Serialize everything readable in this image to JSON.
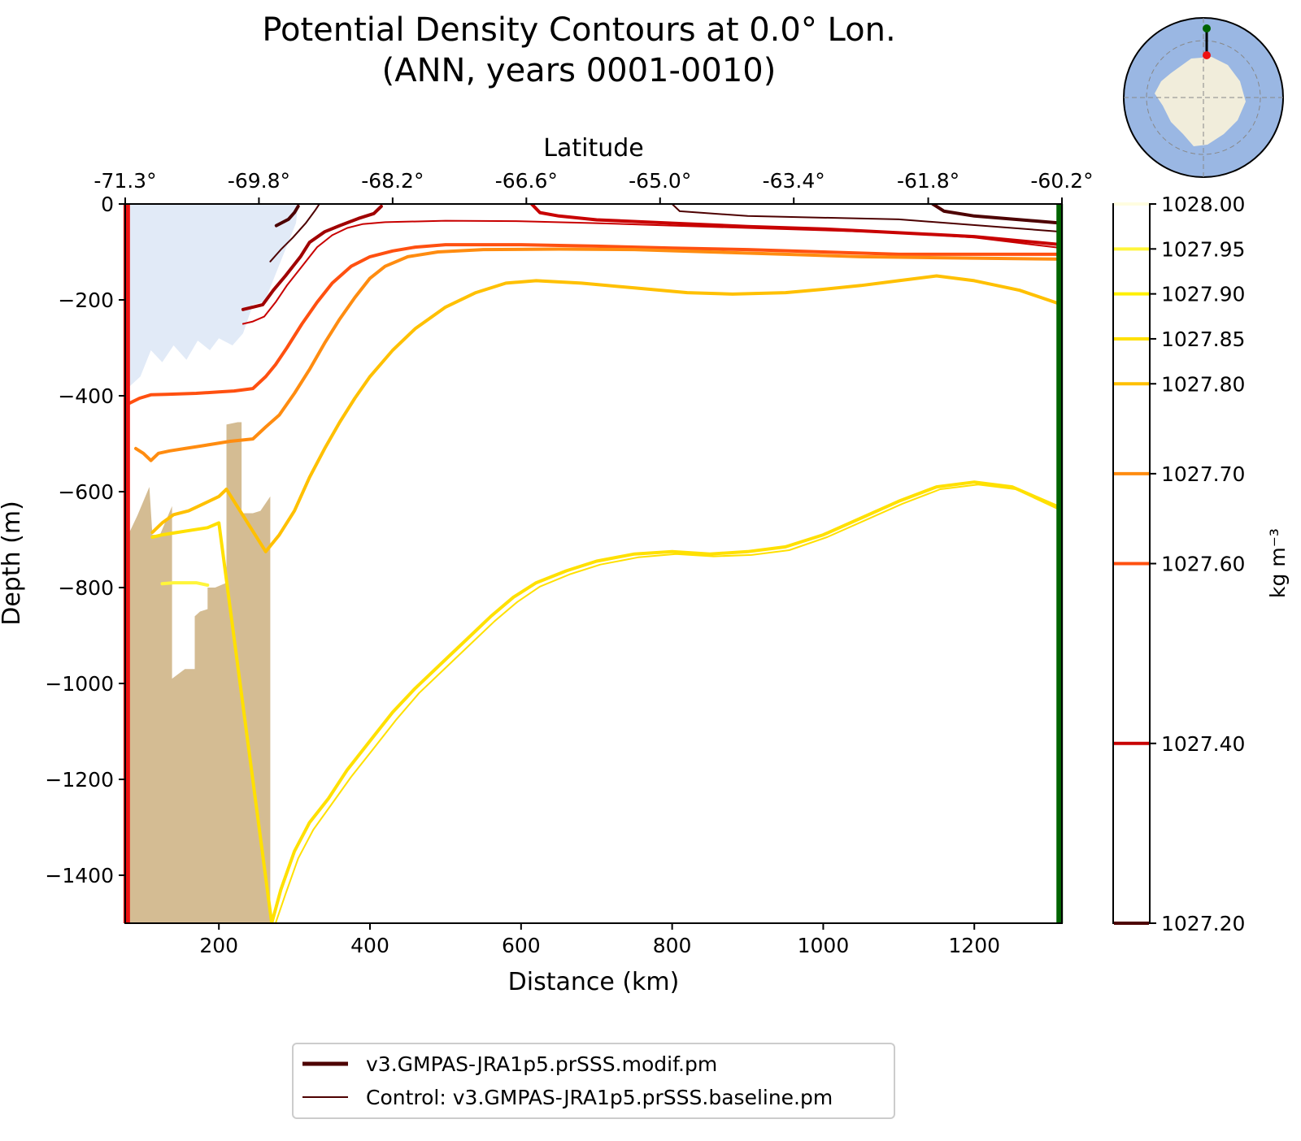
{
  "chart_data": {
    "type": "line",
    "title_line1": "Potential Density Contours at 0.0° Lon.",
    "title_line2": "(ANN, years 0001-0010)",
    "xlabel": "Distance (km)",
    "ylabel": "Depth (m)",
    "top_xlabel": "Latitude",
    "colorbar_label": "kg m⁻³",
    "xlim": [
      76,
      1316
    ],
    "ylim": [
      -1500,
      0
    ],
    "x_ticks": [
      200,
      400,
      600,
      800,
      1000,
      1200
    ],
    "y_ticks": [
      0,
      -200,
      -400,
      -600,
      -800,
      -1000,
      -1200,
      -1400
    ],
    "y_tick_labels": [
      "0",
      "−200",
      "−400",
      "−600",
      "−800",
      "−1000",
      "−1200",
      "−1400"
    ],
    "top_ticks": [
      {
        "x": 76,
        "label": "-71.3°"
      },
      {
        "x": 253,
        "label": "-69.8°"
      },
      {
        "x": 430,
        "label": "-68.2°"
      },
      {
        "x": 607,
        "label": "-66.6°"
      },
      {
        "x": 784,
        "label": "-65.0°"
      },
      {
        "x": 961,
        "label": "-63.4°"
      },
      {
        "x": 1139,
        "label": "-61.8°"
      },
      {
        "x": 1316,
        "label": "-60.2°"
      }
    ],
    "colorbar": {
      "range": [
        1027.2,
        1028.0
      ],
      "levels": [
        {
          "value": 1028.0,
          "label": "1028.00",
          "color": "#fffde0"
        },
        {
          "value": 1027.95,
          "label": "1027.95",
          "color": "#fff53a"
        },
        {
          "value": 1027.9,
          "label": "1027.90",
          "color": "#fff000"
        },
        {
          "value": 1027.85,
          "label": "1027.85",
          "color": "#ffe000"
        },
        {
          "value": 1027.8,
          "label": "1027.80",
          "color": "#ffc000"
        },
        {
          "value": 1027.7,
          "label": "1027.70",
          "color": "#ff8c10"
        },
        {
          "value": 1027.6,
          "label": "1027.60",
          "color": "#ff5010"
        },
        {
          "value": 1027.4,
          "label": "1027.40",
          "color": "#c80000"
        },
        {
          "value": 1027.2,
          "label": "1027.20",
          "color": "#4d0000"
        }
      ]
    },
    "legend": [
      {
        "label": "v3.GMPAS-JRA1p5.prSSS.modif.pm",
        "color": "#4d0000",
        "style": "thick"
      },
      {
        "label": "Control: v3.GMPAS-JRA1p5.prSSS.baseline.pm",
        "color": "#4d0000",
        "style": "thin"
      }
    ],
    "boundaries": [
      {
        "name": "start",
        "x": 78,
        "color": "#ee1111"
      },
      {
        "name": "end",
        "x": 1313,
        "color": "#006400"
      }
    ],
    "ice_shelf": [
      [
        80,
        0
      ],
      [
        305,
        0
      ],
      [
        302,
        -40
      ],
      [
        283,
        -115
      ],
      [
        264,
        -190
      ],
      [
        258,
        -205
      ],
      [
        245,
        -210
      ],
      [
        232,
        -270
      ],
      [
        218,
        -295
      ],
      [
        200,
        -280
      ],
      [
        188,
        -305
      ],
      [
        172,
        -285
      ],
      [
        157,
        -325
      ],
      [
        140,
        -295
      ],
      [
        125,
        -330
      ],
      [
        110,
        -305
      ],
      [
        96,
        -360
      ],
      [
        82,
        -380
      ],
      [
        80,
        -380
      ]
    ],
    "bathymetry": [
      [
        80,
        -1500
      ],
      [
        80,
        -690
      ],
      [
        92,
        -650
      ],
      [
        108,
        -590
      ],
      [
        112,
        -690
      ],
      [
        122,
        -690
      ],
      [
        138,
        -630
      ],
      [
        138,
        -990
      ],
      [
        155,
        -970
      ],
      [
        168,
        -970
      ],
      [
        168,
        -860
      ],
      [
        175,
        -850
      ],
      [
        185,
        -845
      ],
      [
        185,
        -800
      ],
      [
        195,
        -800
      ],
      [
        210,
        -790
      ],
      [
        210,
        -460
      ],
      [
        225,
        -455
      ],
      [
        230,
        -455
      ],
      [
        230,
        -645
      ],
      [
        245,
        -645
      ],
      [
        255,
        -640
      ],
      [
        268,
        -610
      ],
      [
        268,
        -1500
      ]
    ],
    "contours": [
      {
        "level": 1027.2,
        "color": "#4d0000",
        "width": 4,
        "points": [
          [
            276,
            -45
          ],
          [
            292,
            -32
          ],
          [
            300,
            -18
          ],
          [
            305,
            -5
          ]
        ]
      },
      {
        "level": 1027.2,
        "color": "#4d0000",
        "width": 2,
        "points": [
          [
            268,
            -120
          ],
          [
            282,
            -95
          ],
          [
            298,
            -70
          ],
          [
            315,
            -40
          ],
          [
            328,
            -12
          ],
          [
            333,
            0
          ]
        ]
      },
      {
        "level": 1027.2,
        "color": "#4d0000",
        "width": 2,
        "points": [
          [
            800,
            0
          ],
          [
            810,
            -15
          ],
          [
            900,
            -25
          ],
          [
            1100,
            -32
          ],
          [
            1316,
            -58
          ]
        ]
      },
      {
        "level": 1027.2,
        "color": "#4d0000",
        "width": 4,
        "points": [
          [
            1145,
            0
          ],
          [
            1160,
            -15
          ],
          [
            1200,
            -25
          ],
          [
            1316,
            -40
          ]
        ]
      },
      {
        "level": 1027.4,
        "color": "#a00000",
        "width": 4,
        "points": [
          [
            232,
            -220
          ],
          [
            245,
            -215
          ],
          [
            258,
            -210
          ],
          [
            272,
            -180
          ],
          [
            288,
            -150
          ],
          [
            308,
            -110
          ],
          [
            320,
            -80
          ],
          [
            340,
            -58
          ],
          [
            360,
            -45
          ],
          [
            385,
            -30
          ],
          [
            405,
            -20
          ],
          [
            415,
            -5
          ]
        ]
      },
      {
        "level": 1027.4,
        "color": "#c80000",
        "width": 2,
        "points": [
          [
            232,
            -250
          ],
          [
            245,
            -245
          ],
          [
            260,
            -235
          ],
          [
            275,
            -205
          ],
          [
            290,
            -170
          ],
          [
            310,
            -130
          ],
          [
            330,
            -90
          ],
          [
            350,
            -65
          ],
          [
            370,
            -50
          ],
          [
            390,
            -42
          ],
          [
            420,
            -38
          ],
          [
            500,
            -35
          ],
          [
            600,
            -36
          ],
          [
            700,
            -40
          ],
          [
            800,
            -45
          ],
          [
            900,
            -50
          ],
          [
            1000,
            -55
          ],
          [
            1100,
            -60
          ],
          [
            1200,
            -70
          ],
          [
            1316,
            -92
          ]
        ]
      },
      {
        "level": 1027.4,
        "color": "#c80000",
        "width": 4,
        "points": [
          [
            614,
            0
          ],
          [
            625,
            -18
          ],
          [
            650,
            -25
          ],
          [
            700,
            -33
          ],
          [
            800,
            -40
          ],
          [
            900,
            -47
          ],
          [
            1000,
            -52
          ],
          [
            1100,
            -60
          ],
          [
            1200,
            -68
          ],
          [
            1316,
            -85
          ]
        ]
      },
      {
        "level": 1027.6,
        "color": "#ff5010",
        "width": 4,
        "points": [
          [
            82,
            -415
          ],
          [
            95,
            -405
          ],
          [
            110,
            -398
          ],
          [
            130,
            -397
          ],
          [
            150,
            -396
          ],
          [
            170,
            -395
          ],
          [
            200,
            -392
          ],
          [
            220,
            -390
          ],
          [
            245,
            -385
          ],
          [
            262,
            -360
          ],
          [
            275,
            -335
          ],
          [
            290,
            -300
          ],
          [
            310,
            -250
          ],
          [
            330,
            -205
          ],
          [
            350,
            -165
          ],
          [
            375,
            -130
          ],
          [
            400,
            -110
          ],
          [
            430,
            -98
          ],
          [
            460,
            -90
          ],
          [
            500,
            -85
          ],
          [
            600,
            -85
          ],
          [
            700,
            -88
          ],
          [
            800,
            -92
          ],
          [
            900,
            -95
          ],
          [
            1000,
            -100
          ],
          [
            1100,
            -105
          ],
          [
            1200,
            -105
          ],
          [
            1316,
            -105
          ]
        ]
      },
      {
        "level": 1027.7,
        "color": "#ff8c10",
        "width": 4,
        "points": [
          [
            90,
            -510
          ],
          [
            100,
            -520
          ],
          [
            110,
            -535
          ],
          [
            120,
            -520
          ],
          [
            135,
            -515
          ],
          [
            155,
            -510
          ],
          [
            175,
            -505
          ],
          [
            195,
            -500
          ],
          [
            215,
            -495
          ],
          [
            245,
            -490
          ],
          [
            262,
            -465
          ],
          [
            280,
            -440
          ],
          [
            300,
            -395
          ],
          [
            320,
            -345
          ],
          [
            340,
            -290
          ],
          [
            360,
            -240
          ],
          [
            380,
            -195
          ],
          [
            400,
            -155
          ],
          [
            420,
            -130
          ],
          [
            450,
            -110
          ],
          [
            490,
            -100
          ],
          [
            550,
            -95
          ],
          [
            650,
            -94
          ],
          [
            750,
            -95
          ],
          [
            850,
            -100
          ],
          [
            950,
            -105
          ],
          [
            1050,
            -110
          ],
          [
            1150,
            -112
          ],
          [
            1316,
            -115
          ]
        ]
      },
      {
        "level": 1027.8,
        "color": "#ffc000",
        "width": 4,
        "points": [
          [
            112,
            -685
          ],
          [
            125,
            -665
          ],
          [
            140,
            -648
          ],
          [
            160,
            -640
          ],
          [
            180,
            -625
          ],
          [
            200,
            -610
          ],
          [
            210,
            -595
          ],
          [
            262,
            -725
          ],
          [
            280,
            -690
          ],
          [
            300,
            -640
          ],
          [
            320,
            -570
          ],
          [
            340,
            -510
          ],
          [
            360,
            -455
          ],
          [
            380,
            -405
          ],
          [
            400,
            -360
          ],
          [
            430,
            -305
          ],
          [
            460,
            -260
          ],
          [
            500,
            -215
          ],
          [
            540,
            -185
          ],
          [
            580,
            -165
          ],
          [
            620,
            -160
          ],
          [
            680,
            -165
          ],
          [
            750,
            -175
          ],
          [
            820,
            -185
          ],
          [
            880,
            -188
          ],
          [
            950,
            -185
          ],
          [
            1000,
            -178
          ],
          [
            1050,
            -170
          ],
          [
            1100,
            -160
          ],
          [
            1150,
            -150
          ],
          [
            1200,
            -160
          ],
          [
            1260,
            -180
          ],
          [
            1316,
            -210
          ]
        ]
      },
      {
        "level": 1027.85,
        "color": "#ffe000",
        "width": 4,
        "points": [
          [
            112,
            -695
          ],
          [
            125,
            -690
          ],
          [
            145,
            -685
          ],
          [
            165,
            -680
          ],
          [
            185,
            -675
          ],
          [
            200,
            -665
          ],
          [
            270,
            -1500
          ],
          [
            282,
            -1430
          ],
          [
            300,
            -1350
          ],
          [
            320,
            -1290
          ],
          [
            345,
            -1240
          ],
          [
            370,
            -1180
          ],
          [
            400,
            -1120
          ],
          [
            430,
            -1060
          ],
          [
            460,
            -1010
          ],
          [
            500,
            -950
          ],
          [
            530,
            -905
          ],
          [
            560,
            -860
          ],
          [
            590,
            -820
          ],
          [
            620,
            -790
          ],
          [
            660,
            -765
          ],
          [
            700,
            -745
          ],
          [
            750,
            -730
          ],
          [
            800,
            -725
          ],
          [
            850,
            -730
          ],
          [
            900,
            -725
          ],
          [
            950,
            -715
          ],
          [
            1000,
            -690
          ],
          [
            1050,
            -655
          ],
          [
            1100,
            -620
          ],
          [
            1150,
            -590
          ],
          [
            1200,
            -580
          ],
          [
            1250,
            -590
          ],
          [
            1316,
            -635
          ]
        ]
      },
      {
        "level": 1027.85,
        "color": "#ffe000",
        "width": 2,
        "points": [
          [
            275,
            -1500
          ],
          [
            288,
            -1440
          ],
          [
            305,
            -1365
          ],
          [
            325,
            -1305
          ],
          [
            350,
            -1250
          ],
          [
            375,
            -1195
          ],
          [
            405,
            -1135
          ],
          [
            435,
            -1075
          ],
          [
            465,
            -1020
          ],
          [
            505,
            -960
          ],
          [
            535,
            -915
          ],
          [
            565,
            -870
          ],
          [
            595,
            -830
          ],
          [
            625,
            -798
          ],
          [
            665,
            -772
          ],
          [
            705,
            -752
          ],
          [
            755,
            -737
          ],
          [
            805,
            -730
          ],
          [
            855,
            -735
          ],
          [
            905,
            -732
          ],
          [
            955,
            -722
          ],
          [
            1005,
            -695
          ],
          [
            1055,
            -660
          ],
          [
            1105,
            -625
          ],
          [
            1155,
            -595
          ],
          [
            1205,
            -585
          ],
          [
            1255,
            -595
          ],
          [
            1316,
            -640
          ]
        ]
      },
      {
        "level": 1027.9,
        "color": "#fff53a",
        "width": 4,
        "points": [
          [
            125,
            -792
          ],
          [
            140,
            -790
          ],
          [
            155,
            -790
          ],
          [
            170,
            -790
          ],
          [
            185,
            -795
          ]
        ]
      }
    ]
  }
}
